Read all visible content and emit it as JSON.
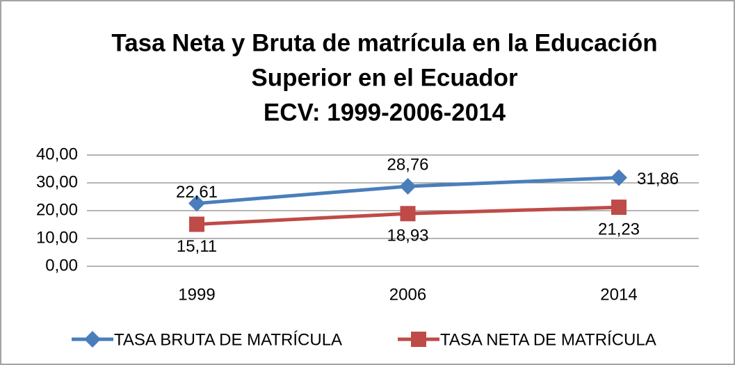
{
  "chart_data": {
    "type": "line",
    "title_lines": [
      "Tasa Neta y Bruta de matrícula en la Educación",
      "Superior en el Ecuador",
      "ECV: 1999-2006-2014"
    ],
    "categories": [
      "1999",
      "2006",
      "2014"
    ],
    "series": [
      {
        "name": "TASA BRUTA DE MATRÍCULA",
        "color": "#4a7ebb",
        "marker": "diamond",
        "values": [
          22.61,
          28.76,
          31.86
        ],
        "value_labels": [
          "22,61",
          "28,76",
          "31,86"
        ]
      },
      {
        "name": "TASA NETA DE MATRÍCULA",
        "color": "#be4b48",
        "marker": "square",
        "values": [
          15.11,
          18.93,
          21.23
        ],
        "value_labels": [
          "15,11",
          "18,93",
          "21,23"
        ]
      }
    ],
    "ylim": [
      0,
      40
    ],
    "yticks": [
      {
        "value": 0,
        "label": "0,00"
      },
      {
        "value": 10,
        "label": "10,00"
      },
      {
        "value": 20,
        "label": "20,00"
      },
      {
        "value": 30,
        "label": "30,00"
      },
      {
        "value": 40,
        "label": "40,00"
      }
    ],
    "grid": true,
    "legend": "bottom"
  }
}
